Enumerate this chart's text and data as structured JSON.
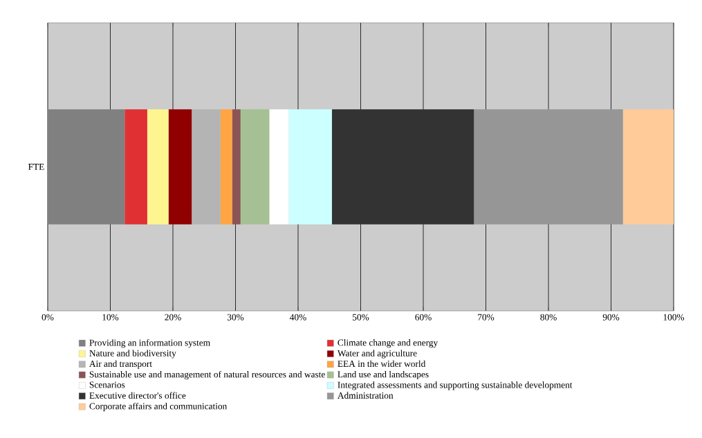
{
  "chart_data": {
    "type": "bar",
    "orientation": "horizontal",
    "stacked": true,
    "categories": [
      "FTE"
    ],
    "series": [
      {
        "name": "Providing an information system",
        "color": "#808080",
        "values": [
          12.3
        ]
      },
      {
        "name": "Climate change and energy",
        "color": "#e03034",
        "values": [
          3.6
        ]
      },
      {
        "name": "Nature and biodiversity",
        "color": "#fff590",
        "values": [
          3.4
        ]
      },
      {
        "name": "Water and agriculture",
        "color": "#900000",
        "values": [
          3.7
        ]
      },
      {
        "name": "Air and transport",
        "color": "#b4b4b4",
        "values": [
          4.6
        ]
      },
      {
        "name": "EEA in the wider world",
        "color": "#ffa544",
        "values": [
          1.9
        ]
      },
      {
        "name": "Sustainable use and management of natural resources and waste",
        "color": "#8b5555",
        "values": [
          1.3
        ]
      },
      {
        "name": "Land use and landscapes",
        "color": "#a5c092",
        "values": [
          4.6
        ]
      },
      {
        "name": "Scenarios",
        "color": "#ffffff",
        "values": [
          3.1
        ]
      },
      {
        "name": "Integrated assessments and supporting sustainable development",
        "color": "#ccffff",
        "values": [
          6.9
        ]
      },
      {
        "name": "Executive director's office",
        "color": "#333333",
        "values": [
          22.7
        ]
      },
      {
        "name": "Administration",
        "color": "#969696",
        "values": [
          23.8
        ]
      },
      {
        "name": "Corporate affairs and communication",
        "color": "#ffcc99",
        "values": [
          8.1
        ]
      }
    ],
    "xlim": [
      0,
      100
    ],
    "xticks": [
      {
        "value": 0,
        "label": "0%"
      },
      {
        "value": 10,
        "label": "10%"
      },
      {
        "value": 20,
        "label": "20%"
      },
      {
        "value": 30,
        "label": "30%"
      },
      {
        "value": 40,
        "label": "40%"
      },
      {
        "value": 50,
        "label": "50%"
      },
      {
        "value": 60,
        "label": "60%"
      },
      {
        "value": 70,
        "label": "70%"
      },
      {
        "value": 80,
        "label": "80%"
      },
      {
        "value": 90,
        "label": "90%"
      },
      {
        "value": 100,
        "label": "100%"
      }
    ],
    "grid": "x",
    "legend": "bottom"
  }
}
